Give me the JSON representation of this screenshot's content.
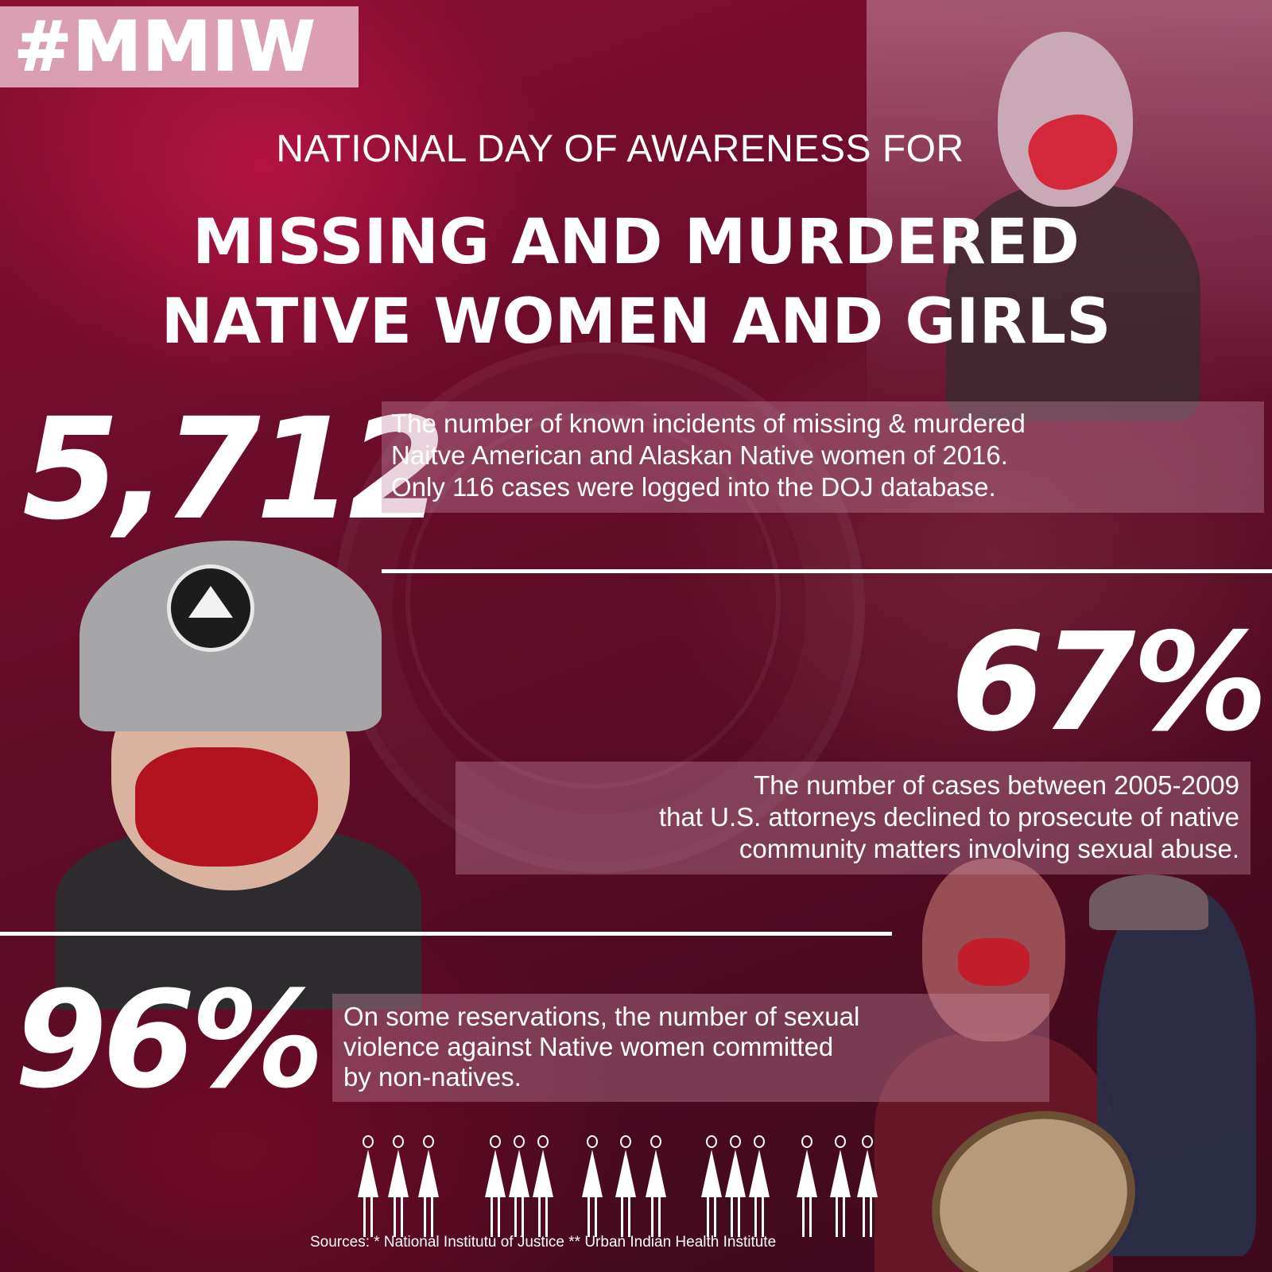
{
  "header": {
    "hashtag": "#MMIW",
    "subtitle": "NATIONAL DAY OF AWARENESS FOR",
    "title_line1": "MISSING AND MURDERED",
    "title_line2": "NATIVE WOMEN AND GIRLS"
  },
  "stats": [
    {
      "value": "5,712",
      "lines": [
        "The number of known incidents of missing & murdered",
        "Naitve American and Alaskan Native women of 2016.",
        "Only 116 cases were logged into the DOJ database."
      ]
    },
    {
      "value": "67%",
      "lines": [
        "The number of cases between 2005-2009",
        "that U.S. attorneys declined to prosecute of native",
        "community matters involving sexual abuse."
      ]
    },
    {
      "value": "96%",
      "lines": [
        "On some reservations, the number of sexual",
        "violence against Native women committed",
        "by non-natives."
      ]
    }
  ],
  "sources": "Sources: * National Institutu of Justice ** Urban Indian Health Institute",
  "colors": {
    "background": "#6d0c2b",
    "text_box": "#c88ca5",
    "hashtag_box": "#e1aabe",
    "face_paint": "#c11d2a"
  },
  "icons": [
    "women-holding-hands-icon"
  ]
}
